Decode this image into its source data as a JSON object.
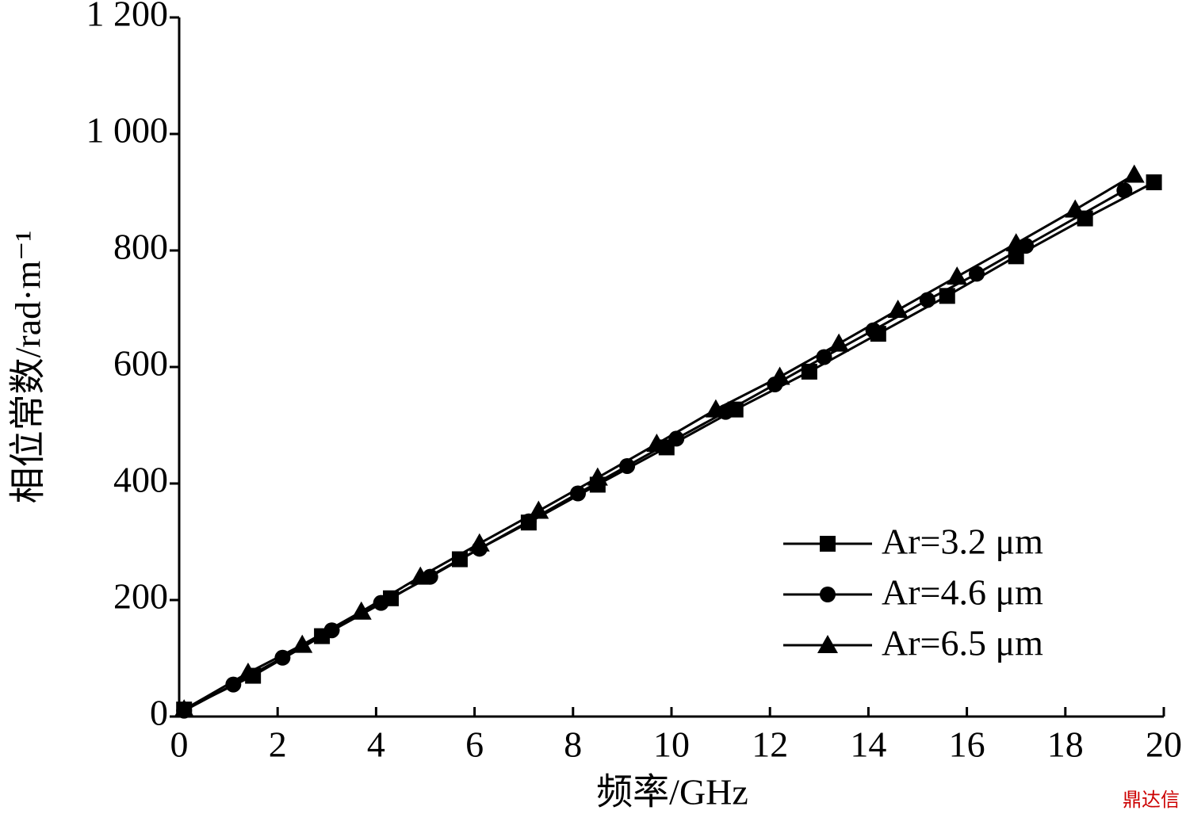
{
  "chart_data": {
    "type": "line",
    "x_label": "频率/GHz",
    "y_label": "相位常数/rad·m⁻¹",
    "watermark": "鼎达信",
    "xlim": [
      0,
      20
    ],
    "xticks": [
      0,
      2,
      4,
      6,
      8,
      10,
      12,
      14,
      16,
      18,
      20
    ],
    "ylim": [
      0,
      1200
    ],
    "yticks": [
      0,
      200,
      400,
      600,
      800,
      {
        "value": 1000,
        "label": "1 000"
      },
      {
        "value": 1200,
        "label": "1 200"
      }
    ],
    "legend": "lower right",
    "series": [
      {
        "name": "Ar=3.2 μm",
        "color": "#000000",
        "marker": "square",
        "x": [
          0.1,
          1.5,
          2.9,
          4.3,
          5.7,
          7.1,
          8.5,
          9.9,
          11.3,
          12.8,
          14.2,
          15.6,
          17.0,
          18.4,
          19.8
        ],
        "values": [
          12,
          70,
          138,
          203,
          270,
          333,
          398,
          462,
          527,
          592,
          657,
          722,
          790,
          855,
          917
        ]
      },
      {
        "name": "Ar=4.6 μm",
        "color": "#000000",
        "marker": "circle",
        "x": [
          0.1,
          1.1,
          2.1,
          3.1,
          4.1,
          5.1,
          6.1,
          7.1,
          8.1,
          9.1,
          10.1,
          11.1,
          12.1,
          13.1,
          14.1,
          15.2,
          16.2,
          17.2,
          19.2
        ],
        "values": [
          10,
          55,
          101,
          148,
          195,
          240,
          288,
          335,
          383,
          430,
          477,
          523,
          570,
          617,
          663,
          715,
          760,
          808,
          903
        ]
      },
      {
        "name": "Ar=6.5 μm",
        "color": "#000000",
        "marker": "triangle",
        "x": [
          0.1,
          1.4,
          2.5,
          3.7,
          4.9,
          6.1,
          7.3,
          8.5,
          9.7,
          10.9,
          12.2,
          13.4,
          14.6,
          15.8,
          17.0,
          18.2,
          19.4
        ],
        "values": [
          12,
          75,
          123,
          180,
          240,
          297,
          353,
          410,
          468,
          527,
          583,
          640,
          698,
          755,
          812,
          870,
          930
        ]
      }
    ]
  }
}
